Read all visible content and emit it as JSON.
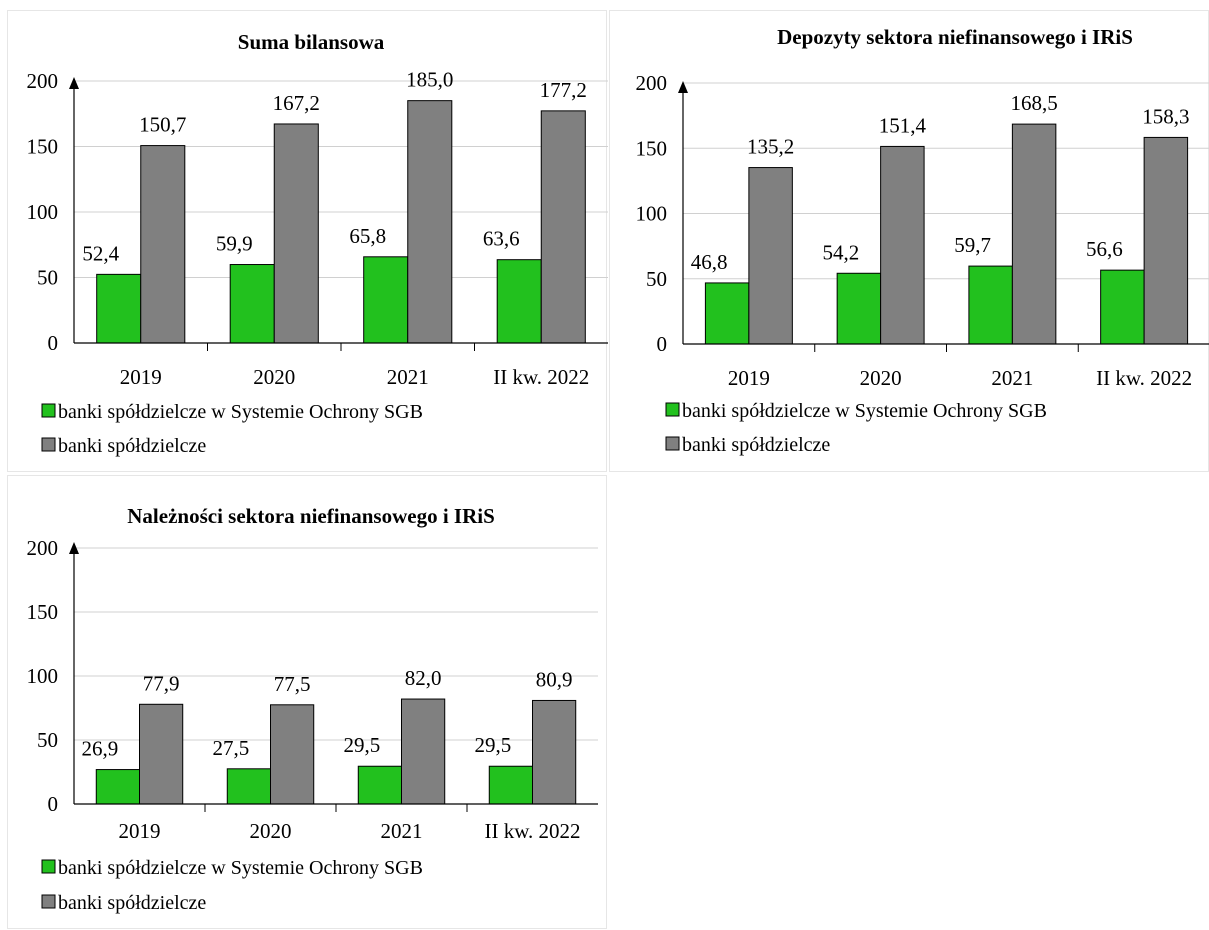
{
  "colors": {
    "series1": "#22c11e",
    "series2": "#808080",
    "grid": "#d0d0d0",
    "axis": "#000000"
  },
  "chart_data": [
    {
      "type": "bar",
      "title": "Suma bilansowa",
      "categories": [
        "2019",
        "2020",
        "2021",
        "II kw. 2022"
      ],
      "series": [
        {
          "name": "banki spółdzielcze w Systemie Ochrony SGB",
          "values": [
            52.4,
            59.9,
            65.8,
            63.6
          ],
          "labels": [
            "52,4",
            "59,9",
            "65,8",
            "63,6"
          ]
        },
        {
          "name": "banki spółdzielcze",
          "values": [
            150.7,
            167.2,
            185.0,
            177.2
          ],
          "labels": [
            "150,7",
            "167,2",
            "185,0",
            "177,2"
          ]
        }
      ],
      "ylim": [
        0,
        200
      ],
      "yticks": [
        "0",
        "50",
        "100",
        "150",
        "200"
      ],
      "grid": true,
      "legend": "bottom"
    },
    {
      "type": "bar",
      "title": "Depozyty sektora niefinansowego i IRiS",
      "categories": [
        "2019",
        "2020",
        "2021",
        "II kw. 2022"
      ],
      "series": [
        {
          "name": "banki spółdzielcze w Systemie Ochrony SGB",
          "values": [
            46.8,
            54.2,
            59.7,
            56.6
          ],
          "labels": [
            "46,8",
            "54,2",
            "59,7",
            "56,6"
          ]
        },
        {
          "name": "banki spółdzielcze",
          "values": [
            135.2,
            151.4,
            168.5,
            158.3
          ],
          "labels": [
            "135,2",
            "151,4",
            "168,5",
            "158,3"
          ]
        }
      ],
      "ylim": [
        0,
        200
      ],
      "yticks": [
        "0",
        "50",
        "100",
        "150",
        "200"
      ],
      "grid": true,
      "legend": "bottom"
    },
    {
      "type": "bar",
      "title": "Należności sektora niefinansowego i IRiS",
      "categories": [
        "2019",
        "2020",
        "2021",
        "II kw. 2022"
      ],
      "series": [
        {
          "name": "banki spółdzielcze w Systemie Ochrony SGB",
          "values": [
            26.9,
            27.5,
            29.5,
            29.5
          ],
          "labels": [
            "26,9",
            "27,5",
            "29,5",
            "29,5"
          ]
        },
        {
          "name": "banki spółdzielcze",
          "values": [
            77.9,
            77.5,
            82.0,
            80.9
          ],
          "labels": [
            "77,9",
            "77,5",
            "82,0",
            "80,9"
          ]
        }
      ],
      "ylim": [
        0,
        200
      ],
      "yticks": [
        "0",
        "50",
        "100",
        "150",
        "200"
      ],
      "grid": true,
      "legend": "bottom"
    }
  ]
}
